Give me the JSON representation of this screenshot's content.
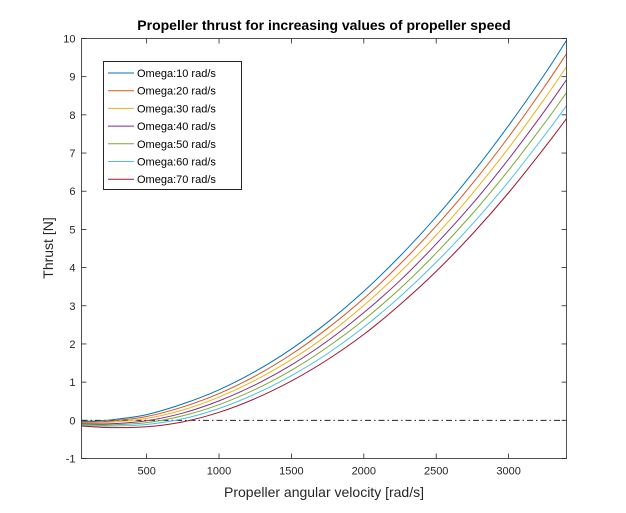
{
  "chart_data": {
    "type": "line",
    "title": "Propeller thrust for increasing values of propeller speed",
    "xlabel": "Propeller angular velocity [rad/s]",
    "ylabel": "Thrust [N]",
    "xlim": [
      50,
      3400
    ],
    "ylim": [
      -1,
      10
    ],
    "xticks": [
      500,
      1000,
      1500,
      2000,
      2500,
      3000
    ],
    "yticks": [
      -1,
      0,
      1,
      2,
      3,
      4,
      5,
      6,
      7,
      8,
      9,
      10
    ],
    "grid": false,
    "box": true,
    "legend_position": "top-left",
    "x": [
      50,
      250,
      500,
      750,
      1000,
      1250,
      1500,
      1750,
      2000,
      2250,
      2500,
      2750,
      3000,
      3250,
      3400
    ],
    "series": [
      {
        "name": "Omega:10 rad/s",
        "color": "#0072BD",
        "values": [
          -0.03,
          0.01,
          0.15,
          0.43,
          0.8,
          1.28,
          1.87,
          2.57,
          3.38,
          4.3,
          5.33,
          6.47,
          7.72,
          9.07,
          9.95
        ]
      },
      {
        "name": "Omega:20 rad/s",
        "color": "#D95319",
        "values": [
          -0.05,
          -0.02,
          0.1,
          0.35,
          0.7,
          1.16,
          1.73,
          2.41,
          3.19,
          4.09,
          5.09,
          6.2,
          7.42,
          8.75,
          9.6
        ]
      },
      {
        "name": "Omega:30 rad/s",
        "color": "#EDB120",
        "values": [
          -0.07,
          -0.05,
          0.05,
          0.27,
          0.61,
          1.05,
          1.59,
          2.24,
          3.01,
          3.88,
          4.85,
          5.94,
          7.13,
          8.43,
          9.26
        ]
      },
      {
        "name": "Omega:40 rad/s",
        "color": "#7E2F8E",
        "values": [
          -0.09,
          -0.09,
          -0.01,
          0.19,
          0.51,
          0.93,
          1.45,
          2.08,
          2.82,
          3.66,
          4.62,
          5.67,
          6.84,
          8.11,
          8.92
        ]
      },
      {
        "name": "Omega:50 rad/s",
        "color": "#77AC30",
        "values": [
          -0.11,
          -0.12,
          -0.06,
          0.12,
          0.41,
          0.81,
          1.31,
          1.92,
          2.63,
          3.45,
          4.38,
          5.41,
          6.55,
          7.79,
          8.58
        ]
      },
      {
        "name": "Omega:60 rad/s",
        "color": "#4DBEEE",
        "values": [
          -0.13,
          -0.15,
          -0.11,
          0.04,
          0.31,
          0.69,
          1.17,
          1.75,
          2.44,
          3.24,
          4.14,
          5.14,
          6.25,
          7.47,
          8.24
        ]
      },
      {
        "name": "Omega:70 rad/s",
        "color": "#A2142F",
        "values": [
          -0.15,
          -0.19,
          -0.17,
          -0.04,
          0.21,
          0.57,
          1.03,
          1.59,
          2.25,
          3.03,
          3.9,
          4.88,
          5.96,
          7.15,
          7.9
        ]
      }
    ],
    "reference_line": {
      "y": 0,
      "style": "dash-dot",
      "color": "#000000"
    }
  }
}
